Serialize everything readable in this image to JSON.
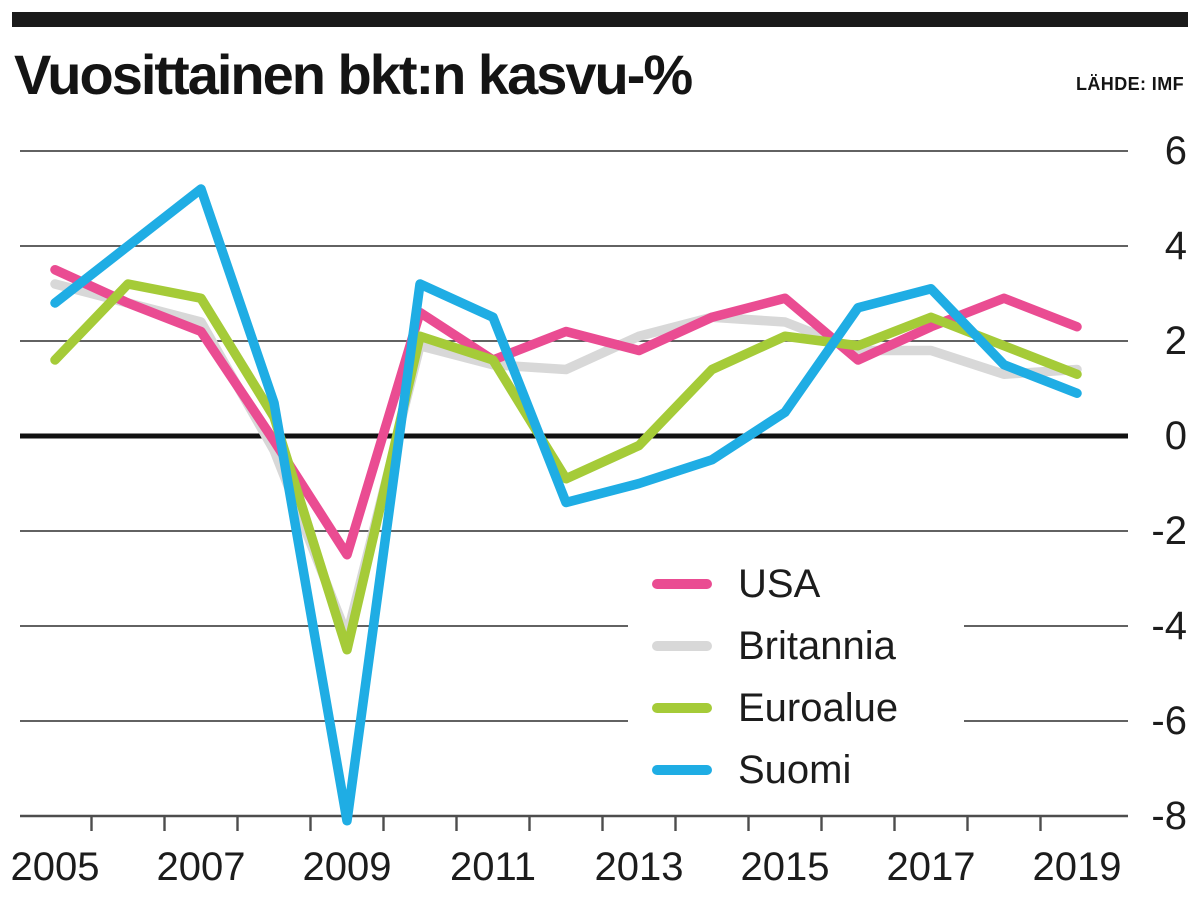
{
  "page": {
    "title": "Vuosittainen bkt:n kasvu-%",
    "source": "LÄHDE: IMF"
  },
  "chart_data": {
    "type": "line",
    "title": "Vuosittainen bkt:n kasvu-%",
    "source": "LÄHDE: IMF",
    "x": [
      2005,
      2006,
      2007,
      2008,
      2009,
      2010,
      2011,
      2012,
      2013,
      2014,
      2015,
      2016,
      2017,
      2018,
      2019
    ],
    "series": [
      {
        "name": "USA",
        "color": "#EA4C92",
        "values": [
          3.5,
          2.8,
          2.2,
          -0.1,
          -2.5,
          2.6,
          1.6,
          2.2,
          1.8,
          2.5,
          2.9,
          1.6,
          2.3,
          2.9,
          2.3
        ]
      },
      {
        "name": "Britannia",
        "color": "#D8D8D8",
        "values": [
          3.2,
          2.8,
          2.4,
          -0.3,
          -4.2,
          1.9,
          1.5,
          1.4,
          2.1,
          2.5,
          2.4,
          1.8,
          1.8,
          1.3,
          1.4
        ]
      },
      {
        "name": "Euroalue",
        "color": "#A5CB38",
        "values": [
          1.6,
          3.2,
          2.9,
          0.4,
          -4.5,
          2.1,
          1.6,
          -0.9,
          -0.2,
          1.4,
          2.1,
          1.9,
          2.5,
          1.9,
          1.3
        ]
      },
      {
        "name": "Suomi",
        "color": "#1FADE4",
        "values": [
          2.8,
          4.0,
          5.2,
          0.7,
          -8.1,
          3.2,
          2.5,
          -1.4,
          -1.0,
          -0.5,
          0.5,
          2.7,
          3.1,
          1.5,
          0.9
        ]
      }
    ],
    "ylim": [
      -8,
      6
    ],
    "yticks": [
      6,
      4,
      2,
      0,
      -2,
      -4,
      -6,
      -8
    ],
    "xtick_labels": [
      "2005",
      "2007",
      "2009",
      "2011",
      "2013",
      "2015",
      "2017",
      "2019"
    ],
    "grid": true,
    "zero_line_emphasis": true,
    "legend_position": "center-right",
    "unit": "%"
  }
}
